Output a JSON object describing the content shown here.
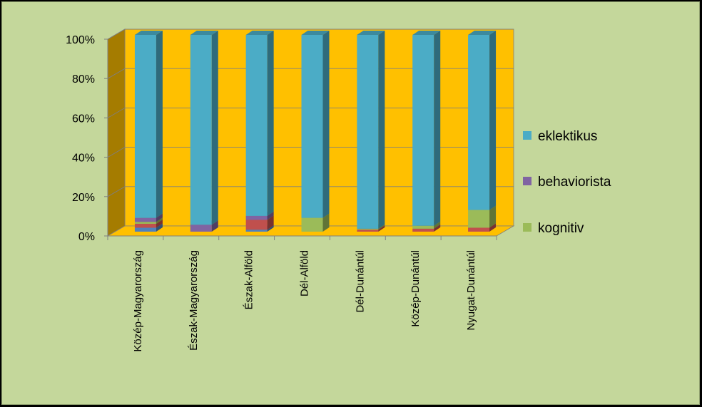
{
  "chart_data": {
    "type": "bar",
    "stacked": "percent",
    "three_d": true,
    "categories": [
      "Közép-Magyarország",
      "Észak-Magyarország",
      "Észak-Alföld",
      "Dél-Alföld",
      "Dél-Dunántúl",
      "Közép-Dunántúl",
      "Nyugat-Dunántúl"
    ],
    "series": [
      {
        "id": "s1",
        "color": "#4f81bd",
        "values": [
          2,
          0,
          1,
          0,
          0,
          0,
          0
        ]
      },
      {
        "id": "s2",
        "color": "#c0504d",
        "values": [
          2,
          0,
          5,
          0,
          1,
          1.5,
          2
        ]
      },
      {
        "name": "kognitiv",
        "color": "#9bbb59",
        "values": [
          1,
          0,
          0,
          7,
          0.5,
          1.5,
          9
        ]
      },
      {
        "name": "behaviorista",
        "color": "#8064a2",
        "values": [
          2,
          3.5,
          2,
          0,
          0,
          0,
          0
        ]
      },
      {
        "id": "s5",
        "color": "#f79646",
        "values": [
          0,
          0,
          0,
          0,
          0,
          0,
          0
        ]
      },
      {
        "name": "eklektikus",
        "color": "#4bacc6",
        "values": [
          93,
          96.5,
          92,
          93,
          98.5,
          97,
          89
        ]
      }
    ],
    "yticks": [
      "0%",
      "20%",
      "40%",
      "60%",
      "80%",
      "100%"
    ],
    "ylim": [
      0,
      100
    ],
    "legend": [
      "eklektikus",
      "behaviorista",
      "kognitiv"
    ],
    "legend_position": "right",
    "plot_wall_color": "#ffc000",
    "side_wall_color": "#a57c00",
    "floor_color": "#ffc000",
    "grid": true
  }
}
